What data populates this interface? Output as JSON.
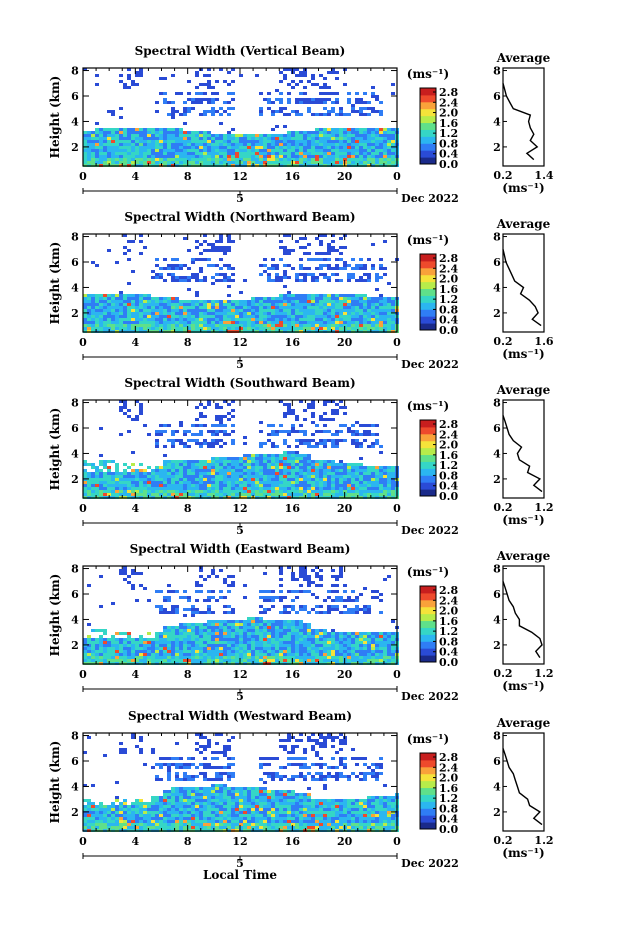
{
  "figure": {
    "xlabel": "Local Time",
    "date_label": "Dec 2022",
    "day_label": "5",
    "colorbar_unit": "(ms⁻¹)",
    "colorbar_ticks": [
      "2.8",
      "2.4",
      "2.0",
      "1.6",
      "1.2",
      "0.8",
      "0.4",
      "0.0"
    ],
    "colormap": [
      "#1a2a8a",
      "#2a4bd6",
      "#2f7df5",
      "#2bb6f0",
      "#35d6c6",
      "#5fe08a",
      "#b7ec4a",
      "#f5e33a",
      "#f9a23a",
      "#ee4a2c",
      "#c81e1e"
    ],
    "average_title": "Average",
    "average_unit": "(ms⁻¹)"
  },
  "chart_data": [
    {
      "type": "heatmap",
      "title": "Spectral Width (Vertical Beam)",
      "ylabel": "Height (km)",
      "x_ticks": [
        "0",
        "4",
        "8",
        "12",
        "16",
        "20",
        "0"
      ],
      "y_ticks": [
        "2",
        "4",
        "6",
        "8"
      ],
      "ylim": [
        0.5,
        8.2
      ],
      "avg_xticks": [
        "0.2",
        "1.4"
      ],
      "avg_xlim": [
        0.2,
        1.4
      ],
      "avg_heights": [
        1.0,
        1.5,
        2.0,
        2.5,
        3.0,
        3.5,
        4.0,
        4.5,
        5.0,
        5.5,
        6.0,
        6.5,
        7.0
      ],
      "avg_values": [
        1.1,
        0.9,
        1.2,
        1.0,
        1.1,
        1.0,
        0.95,
        1.0,
        0.5,
        0.4,
        0.3,
        0.25,
        0.2
      ]
    },
    {
      "type": "heatmap",
      "title": "Spectral Width (Northward Beam)",
      "ylabel": "Height (km)",
      "x_ticks": [
        "0",
        "4",
        "8",
        "12",
        "16",
        "20",
        "0"
      ],
      "y_ticks": [
        "2",
        "4",
        "6",
        "8"
      ],
      "ylim": [
        0.5,
        8.2
      ],
      "avg_xticks": [
        "0.2",
        "1.6"
      ],
      "avg_xlim": [
        0.2,
        1.6
      ],
      "avg_heights": [
        1.0,
        1.5,
        2.0,
        2.5,
        3.0,
        3.5,
        4.0,
        4.5,
        5.0,
        5.5,
        6.0,
        6.5,
        7.0
      ],
      "avg_values": [
        1.5,
        1.2,
        1.4,
        1.3,
        1.1,
        0.8,
        0.9,
        0.6,
        0.5,
        0.4,
        0.3,
        0.25,
        0.2
      ]
    },
    {
      "type": "heatmap",
      "title": "Spectral Width (Southward Beam)",
      "ylabel": "Height (km)",
      "x_ticks": [
        "0",
        "4",
        "8",
        "12",
        "16",
        "20",
        "0"
      ],
      "y_ticks": [
        "2",
        "4",
        "6",
        "8"
      ],
      "ylim": [
        0.5,
        8.2
      ],
      "avg_xticks": [
        "0.2",
        "1.2"
      ],
      "avg_xlim": [
        0.2,
        1.2
      ],
      "avg_heights": [
        1.0,
        1.5,
        2.0,
        2.5,
        3.0,
        3.5,
        4.0,
        4.5,
        5.0,
        5.5,
        6.0,
        6.5,
        7.0
      ],
      "avg_values": [
        1.15,
        0.95,
        1.1,
        0.8,
        0.85,
        0.6,
        0.55,
        0.65,
        0.45,
        0.35,
        0.3,
        0.25,
        0.2
      ]
    },
    {
      "type": "heatmap",
      "title": "Spectral Width (Eastward Beam)",
      "ylabel": "Height (km)",
      "x_ticks": [
        "0",
        "4",
        "8",
        "12",
        "16",
        "20",
        "0"
      ],
      "y_ticks": [
        "2",
        "4",
        "6",
        "8"
      ],
      "ylim": [
        0.5,
        8.2
      ],
      "avg_xticks": [
        "0.2",
        "1.2"
      ],
      "avg_xlim": [
        0.2,
        1.2
      ],
      "avg_heights": [
        1.0,
        1.5,
        2.0,
        2.5,
        3.0,
        3.5,
        4.0,
        4.5,
        5.0,
        5.5,
        6.0,
        6.5,
        7.0
      ],
      "avg_values": [
        1.1,
        1.0,
        1.15,
        1.1,
        0.9,
        0.6,
        0.6,
        0.5,
        0.45,
        0.35,
        0.3,
        0.25,
        0.2
      ]
    },
    {
      "type": "heatmap",
      "title": "Spectral Width (Westward Beam)",
      "ylabel": "Height (km)",
      "x_ticks": [
        "0",
        "4",
        "8",
        "12",
        "16",
        "20",
        "0"
      ],
      "y_ticks": [
        "2",
        "4",
        "6",
        "8"
      ],
      "ylim": [
        0.5,
        8.2
      ],
      "avg_xticks": [
        "0.2",
        "1.2"
      ],
      "avg_xlim": [
        0.2,
        1.2
      ],
      "avg_heights": [
        1.0,
        1.5,
        2.0,
        2.5,
        3.0,
        3.5,
        4.0,
        4.5,
        5.0,
        5.5,
        6.0,
        6.5,
        7.0
      ],
      "avg_values": [
        1.15,
        0.95,
        1.1,
        0.85,
        0.8,
        0.6,
        0.55,
        0.5,
        0.45,
        0.35,
        0.3,
        0.25,
        0.2
      ]
    }
  ]
}
